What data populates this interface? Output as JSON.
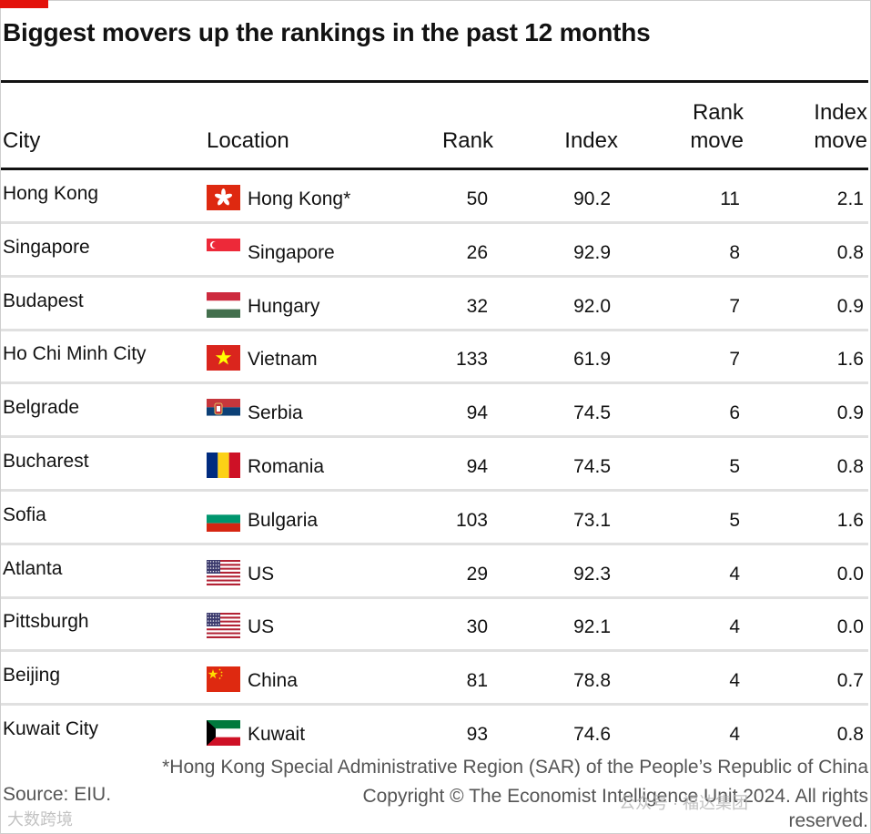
{
  "title": "Biggest movers up the rankings in the past 12 months",
  "columns": {
    "city": "City",
    "location": "Location",
    "rank": "Rank",
    "index": "Index",
    "rank_move_1": "Rank",
    "rank_move_2": "move",
    "index_move_1": "Index",
    "index_move_2": "move"
  },
  "chart_data": {
    "type": "table",
    "title": "Biggest movers up the rankings in the past 12 months",
    "headers": [
      "City",
      "Location",
      "Rank",
      "Index",
      "Rank move",
      "Index move"
    ],
    "rows": [
      {
        "city": "Hong Kong",
        "location": "Hong Kong*",
        "flag": "hong-kong",
        "rank": "50",
        "index": "90.2",
        "rank_move": "11",
        "index_move": "2.1"
      },
      {
        "city": "Singapore",
        "location": "Singapore",
        "flag": "singapore",
        "rank": "26",
        "index": "92.9",
        "rank_move": "8",
        "index_move": "0.8"
      },
      {
        "city": "Budapest",
        "location": "Hungary",
        "flag": "hungary",
        "rank": "32",
        "index": "92.0",
        "rank_move": "7",
        "index_move": "0.9"
      },
      {
        "city": "Ho Chi Minh City",
        "location": "Vietnam",
        "flag": "vietnam",
        "rank": "133",
        "index": "61.9",
        "rank_move": "7",
        "index_move": "1.6"
      },
      {
        "city": "Belgrade",
        "location": "Serbia",
        "flag": "serbia",
        "rank": "94",
        "index": "74.5",
        "rank_move": "6",
        "index_move": "0.9"
      },
      {
        "city": "Bucharest",
        "location": "Romania",
        "flag": "romania",
        "rank": "94",
        "index": "74.5",
        "rank_move": "5",
        "index_move": "0.8"
      },
      {
        "city": "Sofia",
        "location": "Bulgaria",
        "flag": "bulgaria",
        "rank": "103",
        "index": "73.1",
        "rank_move": "5",
        "index_move": "1.6"
      },
      {
        "city": "Atlanta",
        "location": "US",
        "flag": "us",
        "rank": "29",
        "index": "92.3",
        "rank_move": "4",
        "index_move": "0.0"
      },
      {
        "city": "Pittsburgh",
        "location": "US",
        "flag": "us",
        "rank": "30",
        "index": "92.1",
        "rank_move": "4",
        "index_move": "0.0"
      },
      {
        "city": "Beijing",
        "location": "China",
        "flag": "china",
        "rank": "81",
        "index": "78.8",
        "rank_move": "4",
        "index_move": "0.7"
      },
      {
        "city": "Kuwait City",
        "location": "Kuwait",
        "flag": "kuwait",
        "rank": "93",
        "index": "74.6",
        "rank_move": "4",
        "index_move": "0.8"
      }
    ]
  },
  "footnote": "*Hong Kong Special Administrative Region (SAR) of the People’s Republic of China",
  "source": "Source: EIU.",
  "copyright_1": "Copyright © The Economist Intelligence Unit 2024. All rights",
  "copyright_2": "reserved.",
  "watermark_left": "大数跨境",
  "watermark_right": "公众号 · 福达集团",
  "colors": {
    "accent": "#e3120b",
    "rule": "#121212",
    "row_divider": "#e0e0e0",
    "muted_text": "#555555"
  }
}
